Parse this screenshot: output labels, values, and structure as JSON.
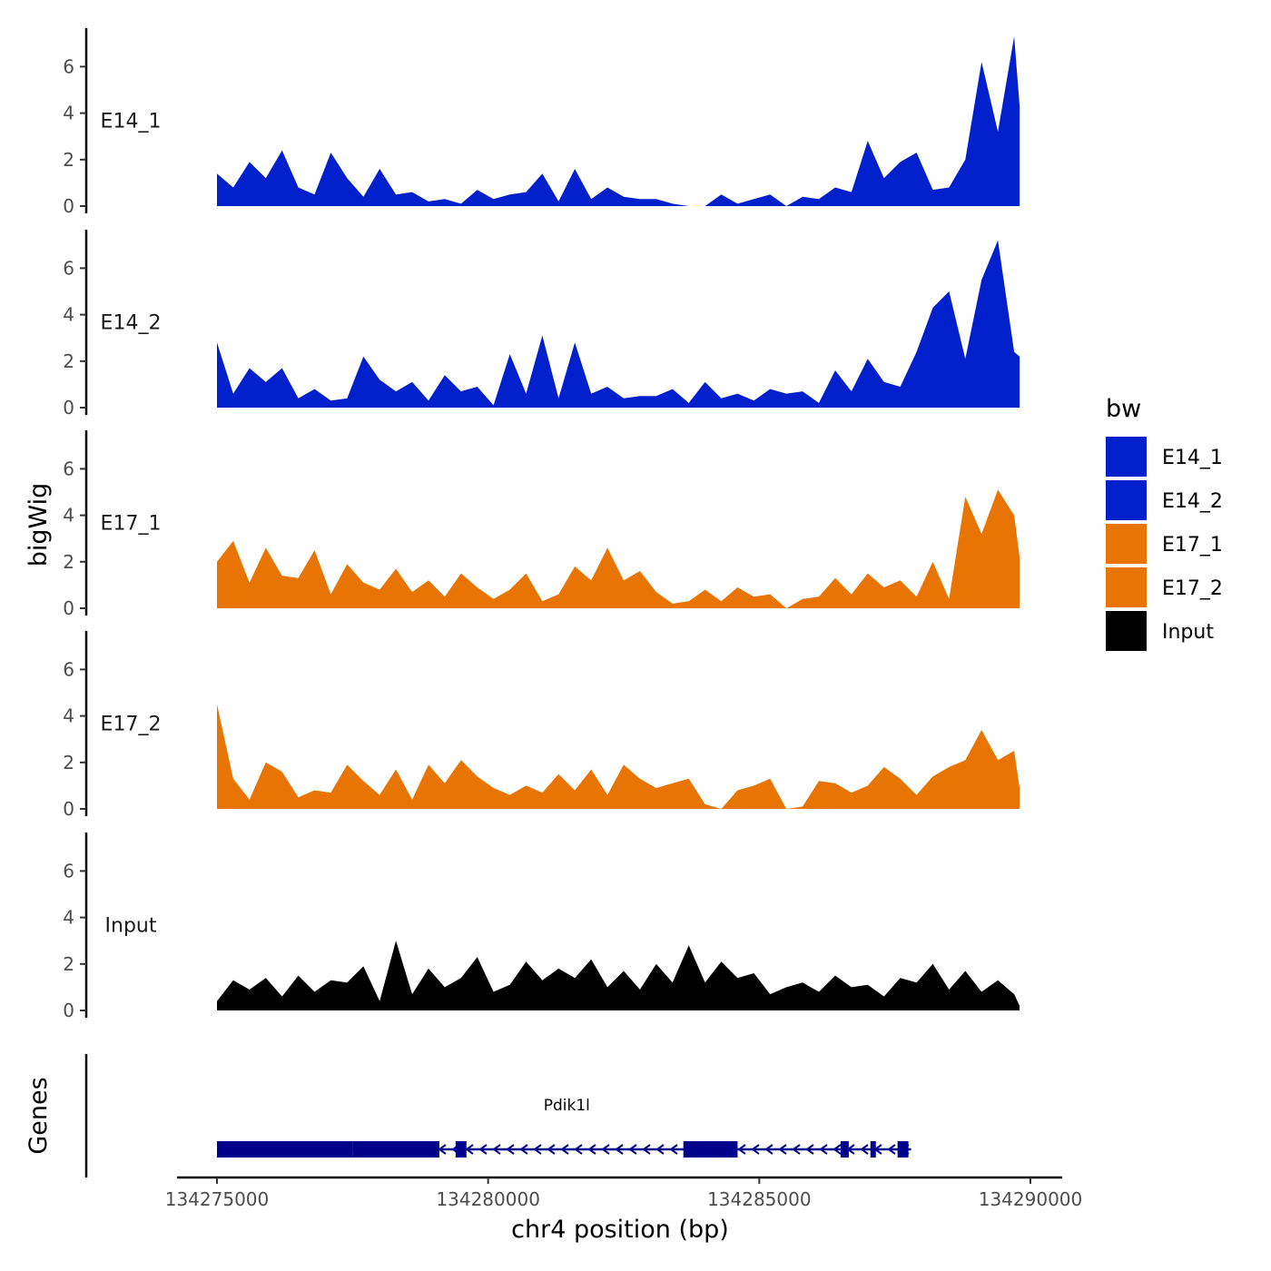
{
  "chart_data": {
    "type": "area",
    "title": "",
    "xlabel": "chr4 position (bp)",
    "ylabel": "bigWig",
    "genes_label": "Genes",
    "xlim": [
      134275000,
      134290000
    ],
    "x_ticks": [
      134275000,
      134280000,
      134285000,
      134290000
    ],
    "x_tick_labels": [
      "134275000",
      "134280000",
      "134285000",
      "134290000"
    ],
    "ylim": [
      0,
      7.6
    ],
    "y_ticks": [
      0,
      2,
      4,
      6
    ],
    "y_tick_labels": [
      "0",
      "2",
      "4",
      "6"
    ],
    "legend": {
      "title": "bw",
      "position": "right",
      "entries": [
        {
          "label": "E14_1",
          "color": "#0020CC"
        },
        {
          "label": "E14_2",
          "color": "#0020CC"
        },
        {
          "label": "E17_1",
          "color": "#E87503"
        },
        {
          "label": "E17_2",
          "color": "#E87503"
        },
        {
          "label": "Input",
          "color": "#000000"
        }
      ]
    },
    "series": [
      {
        "name": "E14_1",
        "color": "#0020CC",
        "x": [
          134275000,
          134275300,
          134275600,
          134275900,
          134276200,
          134276500,
          134276800,
          134277100,
          134277400,
          134277700,
          134278000,
          134278300,
          134278600,
          134278900,
          134279200,
          134279500,
          134279800,
          134280100,
          134280400,
          134280700,
          134281000,
          134281300,
          134281600,
          134281900,
          134282200,
          134282500,
          134282800,
          134283100,
          134283400,
          134283700,
          134284000,
          134284300,
          134284600,
          134284900,
          134285200,
          134285500,
          134285800,
          134286100,
          134286400,
          134286700,
          134287000,
          134287300,
          134287600,
          134287900,
          134288200,
          134288500,
          134288800,
          134289100,
          134289400,
          134289700,
          134289800
        ],
        "values": [
          1.4,
          0.8,
          1.9,
          1.2,
          2.4,
          0.8,
          0.5,
          2.3,
          1.2,
          0.4,
          1.6,
          0.5,
          0.6,
          0.2,
          0.3,
          0.1,
          0.7,
          0.3,
          0.5,
          0.6,
          1.4,
          0.2,
          1.6,
          0.3,
          0.8,
          0.4,
          0.3,
          0.3,
          0.1,
          0.0,
          0.0,
          0.5,
          0.1,
          0.3,
          0.5,
          0.0,
          0.4,
          0.3,
          0.8,
          0.6,
          2.8,
          1.2,
          1.9,
          2.3,
          0.7,
          0.8,
          2.0,
          6.2,
          3.2,
          7.3,
          4.3
        ]
      },
      {
        "name": "E14_2",
        "color": "#0020CC",
        "x": [
          134275000,
          134275300,
          134275600,
          134275900,
          134276200,
          134276500,
          134276800,
          134277100,
          134277400,
          134277700,
          134278000,
          134278300,
          134278600,
          134278900,
          134279200,
          134279500,
          134279800,
          134280100,
          134280400,
          134280700,
          134281000,
          134281300,
          134281600,
          134281900,
          134282200,
          134282500,
          134282800,
          134283100,
          134283400,
          134283700,
          134284000,
          134284300,
          134284600,
          134284900,
          134285200,
          134285500,
          134285800,
          134286100,
          134286400,
          134286700,
          134287000,
          134287300,
          134287600,
          134287900,
          134288200,
          134288500,
          134288800,
          134289100,
          134289400,
          134289700,
          134289800
        ],
        "values": [
          2.8,
          0.6,
          1.7,
          1.1,
          1.7,
          0.4,
          0.8,
          0.3,
          0.4,
          2.2,
          1.2,
          0.7,
          1.1,
          0.3,
          1.4,
          0.7,
          0.9,
          0.1,
          2.3,
          0.6,
          3.1,
          0.4,
          2.8,
          0.6,
          0.9,
          0.4,
          0.5,
          0.5,
          0.8,
          0.2,
          1.1,
          0.4,
          0.6,
          0.3,
          0.8,
          0.6,
          0.7,
          0.2,
          1.6,
          0.7,
          2.1,
          1.1,
          0.9,
          2.4,
          4.3,
          5.0,
          2.1,
          5.5,
          7.2,
          2.4,
          2.2
        ]
      },
      {
        "name": "E17_1",
        "color": "#E87503",
        "x": [
          134275000,
          134275300,
          134275600,
          134275900,
          134276200,
          134276500,
          134276800,
          134277100,
          134277400,
          134277700,
          134278000,
          134278300,
          134278600,
          134278900,
          134279200,
          134279500,
          134279800,
          134280100,
          134280400,
          134280700,
          134281000,
          134281300,
          134281600,
          134281900,
          134282200,
          134282500,
          134282800,
          134283100,
          134283400,
          134283700,
          134284000,
          134284300,
          134284600,
          134284900,
          134285200,
          134285500,
          134285800,
          134286100,
          134286400,
          134286700,
          134287000,
          134287300,
          134287600,
          134287900,
          134288200,
          134288500,
          134288800,
          134289100,
          134289400,
          134289700,
          134289800
        ],
        "values": [
          2.0,
          2.9,
          1.1,
          2.6,
          1.4,
          1.3,
          2.5,
          0.6,
          1.9,
          1.1,
          0.8,
          1.7,
          0.7,
          1.2,
          0.5,
          1.5,
          0.9,
          0.4,
          0.8,
          1.5,
          0.3,
          0.6,
          1.8,
          1.2,
          2.6,
          1.2,
          1.6,
          0.7,
          0.2,
          0.3,
          0.8,
          0.3,
          0.9,
          0.5,
          0.6,
          0.0,
          0.4,
          0.5,
          1.3,
          0.6,
          1.5,
          0.9,
          1.2,
          0.5,
          2.0,
          0.4,
          4.8,
          3.2,
          5.1,
          4.0,
          2.2
        ]
      },
      {
        "name": "E17_2",
        "color": "#E87503",
        "x": [
          134275000,
          134275300,
          134275600,
          134275900,
          134276200,
          134276500,
          134276800,
          134277100,
          134277400,
          134277700,
          134278000,
          134278300,
          134278600,
          134278900,
          134279200,
          134279500,
          134279800,
          134280100,
          134280400,
          134280700,
          134281000,
          134281300,
          134281600,
          134281900,
          134282200,
          134282500,
          134282800,
          134283100,
          134283400,
          134283700,
          134284000,
          134284300,
          134284600,
          134284900,
          134285200,
          134285500,
          134285800,
          134286100,
          134286400,
          134286700,
          134287000,
          134287300,
          134287600,
          134287900,
          134288200,
          134288500,
          134288800,
          134289100,
          134289400,
          134289700,
          134289800
        ],
        "values": [
          4.5,
          1.3,
          0.4,
          2.0,
          1.6,
          0.5,
          0.8,
          0.7,
          1.9,
          1.2,
          0.6,
          1.7,
          0.4,
          1.9,
          1.1,
          2.1,
          1.4,
          0.9,
          0.6,
          1.0,
          0.7,
          1.5,
          0.8,
          1.7,
          0.6,
          1.9,
          1.3,
          0.9,
          1.1,
          1.3,
          0.2,
          0.0,
          0.8,
          1.0,
          1.3,
          0.0,
          0.1,
          1.2,
          1.1,
          0.7,
          1.0,
          1.8,
          1.3,
          0.6,
          1.4,
          1.8,
          2.1,
          3.4,
          2.1,
          2.5,
          0.9
        ]
      },
      {
        "name": "Input",
        "color": "#000000",
        "x": [
          134275000,
          134275300,
          134275600,
          134275900,
          134276200,
          134276500,
          134276800,
          134277100,
          134277400,
          134277700,
          134278000,
          134278300,
          134278600,
          134278900,
          134279200,
          134279500,
          134279800,
          134280100,
          134280400,
          134280700,
          134281000,
          134281300,
          134281600,
          134281900,
          134282200,
          134282500,
          134282800,
          134283100,
          134283400,
          134283700,
          134284000,
          134284300,
          134284600,
          134284900,
          134285200,
          134285500,
          134285800,
          134286100,
          134286400,
          134286700,
          134287000,
          134287300,
          134287600,
          134287900,
          134288200,
          134288500,
          134288800,
          134289100,
          134289400,
          134289700,
          134289800
        ],
        "values": [
          0.4,
          1.3,
          0.9,
          1.4,
          0.6,
          1.5,
          0.8,
          1.3,
          1.2,
          1.9,
          0.4,
          3.0,
          0.7,
          1.8,
          1.0,
          1.4,
          2.3,
          0.8,
          1.1,
          2.1,
          1.3,
          1.8,
          1.4,
          2.2,
          1.0,
          1.7,
          0.9,
          2.0,
          1.2,
          2.8,
          1.2,
          2.1,
          1.4,
          1.6,
          0.7,
          1.0,
          1.2,
          0.8,
          1.5,
          1.0,
          1.1,
          0.6,
          1.4,
          1.2,
          2.0,
          0.9,
          1.7,
          0.8,
          1.3,
          0.7,
          0.2
        ]
      }
    ],
    "genes": [
      {
        "name": "Pdik1l",
        "strand": "-",
        "start": 134275000,
        "end": 134287800,
        "exons": [
          [
            134275000,
            134277500,
            "utr"
          ],
          [
            134277500,
            134279100,
            "cds"
          ],
          [
            134279400,
            134279600,
            "cds"
          ],
          [
            134283600,
            134284600,
            "cds"
          ],
          [
            134286500,
            134286650,
            "cds"
          ],
          [
            134287050,
            134287150,
            "cds"
          ],
          [
            134287550,
            134287750,
            "cds"
          ]
        ]
      }
    ]
  }
}
